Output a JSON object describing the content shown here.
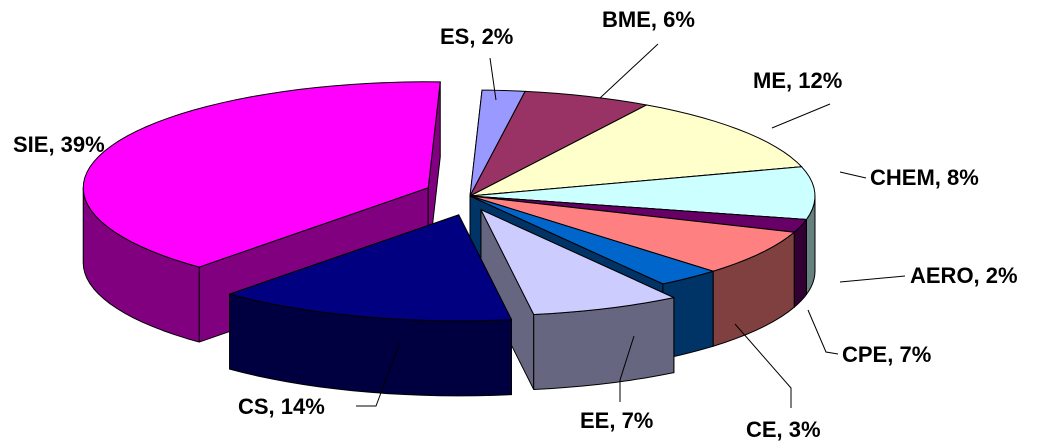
{
  "chart_data": {
    "type": "pie",
    "variant": "3d-exploded",
    "title": "",
    "slices": [
      {
        "category": "ES",
        "value": 2,
        "label": "ES, 2%",
        "top": "#9999ff",
        "side": "#4d4d80"
      },
      {
        "category": "BME",
        "value": 6,
        "label": "BME, 6%",
        "top": "#993366",
        "side": "#4d1a33"
      },
      {
        "category": "ME",
        "value": 12,
        "label": "ME, 12%",
        "top": "#ffffcc",
        "side": "#808066"
      },
      {
        "category": "CHEM",
        "value": 8,
        "label": "CHEM, 8%",
        "top": "#ccffff",
        "side": "#668080"
      },
      {
        "category": "AERO",
        "value": 2,
        "label": "AERO, 2%",
        "top": "#660066",
        "side": "#330033"
      },
      {
        "category": "CPE",
        "value": 7,
        "label": "CPE, 7%",
        "top": "#ff8080",
        "side": "#804040"
      },
      {
        "category": "CE",
        "value": 3,
        "label": "CE, 3%",
        "top": "#0066cc",
        "side": "#003366"
      },
      {
        "category": "EE",
        "value": 7,
        "label": "EE, 7%",
        "top": "#ccccff",
        "side": "#666680"
      },
      {
        "category": "CS",
        "value": 14,
        "label": "CS, 14%",
        "top": "#000080",
        "side": "#000040"
      },
      {
        "category": "SIE",
        "value": 39,
        "label": "SIE, 39%",
        "top": "#ff00ff",
        "side": "#800080"
      }
    ],
    "legend": "none",
    "labels": "outside-with-leader-lines"
  }
}
